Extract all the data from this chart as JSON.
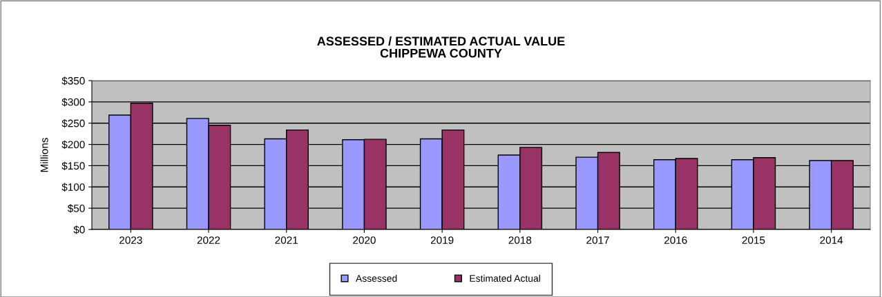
{
  "chart_data": {
    "type": "bar",
    "title": "ASSESSED / ESTIMATED ACTUAL VALUE\nCHIPPEWA COUNTY",
    "ylabel": "Millions",
    "categories": [
      "2023",
      "2022",
      "2021",
      "2020",
      "2019",
      "2018",
      "2017",
      "2016",
      "2015",
      "2014"
    ],
    "series": [
      {
        "name": "Assessed",
        "color": "#9999ff",
        "values": [
          269,
          261,
          213,
          211,
          213,
          175,
          170,
          164,
          164,
          162
        ]
      },
      {
        "name": "Estimated Actual",
        "color": "#993366",
        "values": [
          297,
          245,
          234,
          212,
          234,
          193,
          181,
          167,
          169,
          162
        ]
      }
    ],
    "ylim": [
      0,
      350
    ],
    "yticks": [
      {
        "value": 0,
        "label": "$0"
      },
      {
        "value": 50,
        "label": "$50"
      },
      {
        "value": 100,
        "label": "$100"
      },
      {
        "value": 150,
        "label": "$150"
      },
      {
        "value": 200,
        "label": "$200"
      },
      {
        "value": 250,
        "label": "$250"
      },
      {
        "value": 300,
        "label": "$300"
      },
      {
        "value": 350,
        "label": "$350"
      }
    ],
    "grid": "y",
    "legend": "bottom"
  }
}
